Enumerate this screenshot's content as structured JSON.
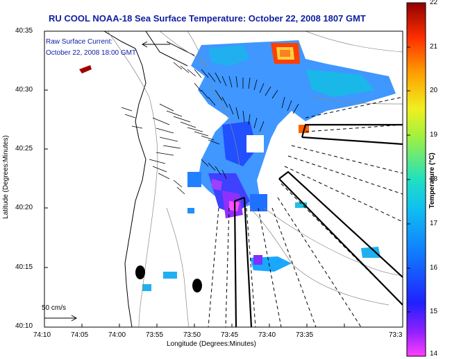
{
  "title": "RU COOL  NOAA-18  Sea Surface Temperature:  October 22, 2008 1807 GMT",
  "annotation_line1": "Raw Surface Current:",
  "annotation_line2": "October 22, 2008 18:00 GMT",
  "scale_label": "50 cm/s",
  "axes": {
    "xlabel": "Longitude (Degrees:Minutes)",
    "ylabel": "Latitude (Degrees:Minutes)",
    "x_ticks": [
      "74:10",
      "74:05",
      "74:00",
      "73:55",
      "73:50",
      "73:45",
      "73:40",
      "73:35",
      "73:3"
    ],
    "y_ticks": [
      "40:35",
      "40:30",
      "40:25",
      "40:20",
      "40:15",
      "40:10"
    ]
  },
  "colorbar": {
    "label": "Temperature (°C)",
    "ticks": [
      "22",
      "21",
      "20",
      "19",
      "18",
      "17",
      "16",
      "15",
      "14"
    ],
    "min": 14,
    "max": 22
  },
  "colors": {
    "title": "#1020a0",
    "annotation": "#1020a0"
  }
}
